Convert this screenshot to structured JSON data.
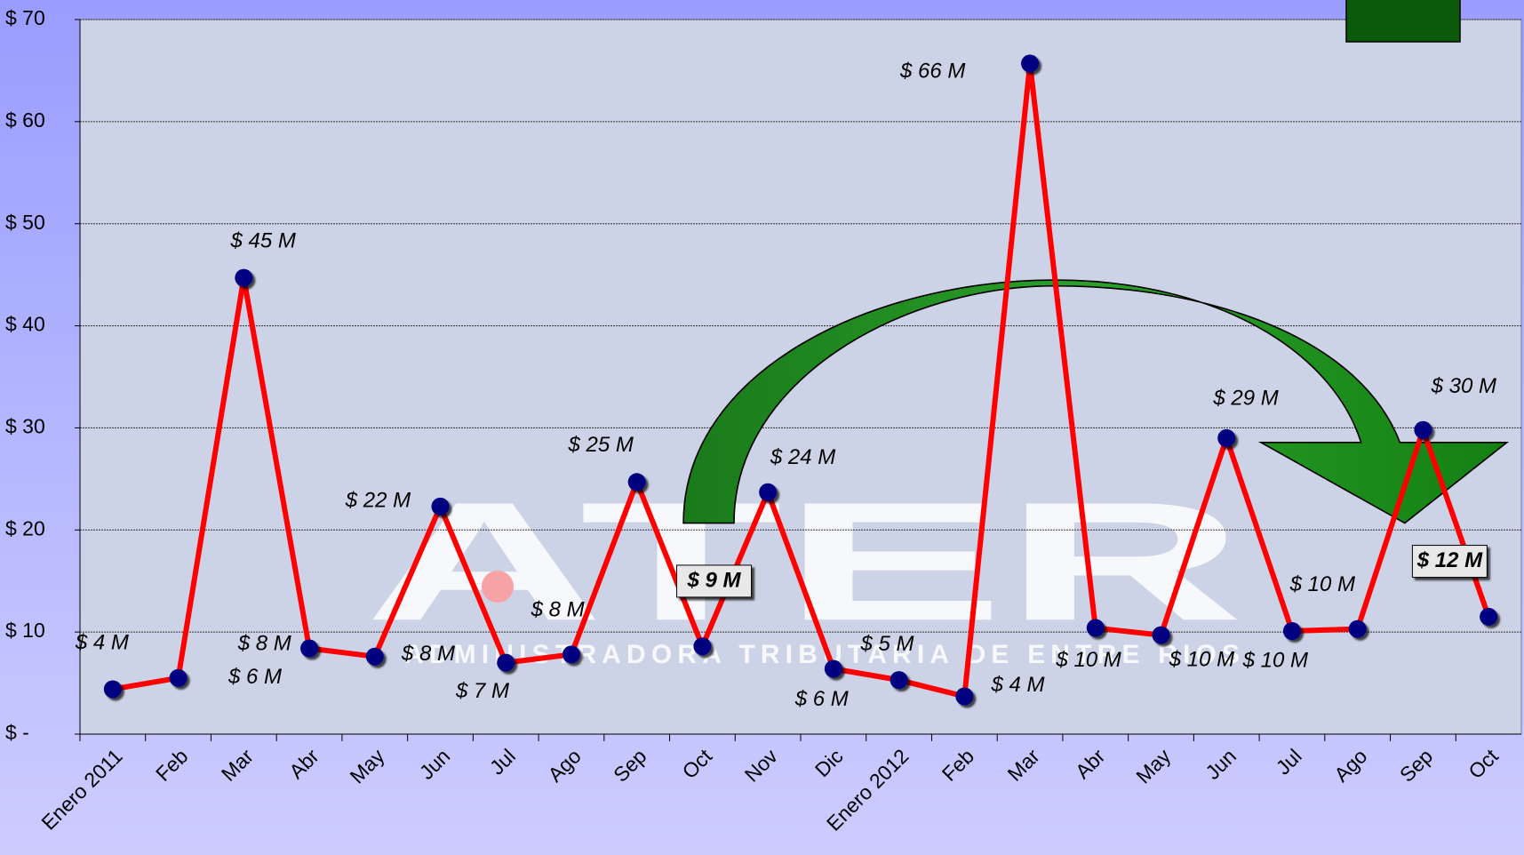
{
  "chart_data": {
    "type": "line",
    "watermark": "ATER",
    "watermark_subtitle": "ADMINISTRADORA TRIBUTARIA DE ENTRE RIOS",
    "categories": [
      "Enero 2011",
      "Feb",
      "Mar",
      "Abr",
      "May",
      "Jun",
      "Jul",
      "Ago",
      "Sep",
      "Oct",
      "Nov",
      "Dic",
      "Enero 2012",
      "Feb",
      "Mar",
      "Abr",
      "May",
      "Jun",
      "Jul",
      "Ago",
      "Sep",
      "Oct"
    ],
    "series": [
      {
        "color": "#ff0000",
        "values": [
          4.4,
          5.5,
          44.7,
          8.4,
          7.6,
          22.3,
          7.0,
          7.8,
          24.7,
          8.6,
          23.7,
          6.4,
          5.3,
          3.7,
          65.7,
          10.4,
          9.7,
          29.0,
          10.1,
          10.3,
          29.8,
          11.5
        ],
        "value_labels": [
          "$ 4 M",
          "$ 6 M",
          "$ 45 M",
          "$ 8 M",
          "$ 8 M",
          "$ 22 M",
          "$ 7 M",
          "$ 8 M",
          "$ 25 M",
          "$ 9 M",
          "$ 24 M",
          "$ 6 M",
          "$ 5 M",
          "$ 4 M",
          "$ 66 M",
          "$ 10 M",
          "$ 10 M",
          "$ 29 M",
          "$ 10 M",
          "$ 10 M",
          "$ 30 M",
          "$ 12 M"
        ]
      }
    ],
    "marker_color": "#000080",
    "ylim": [
      0,
      70
    ],
    "yticks": [
      {
        "value": 0,
        "label": "$ -"
      },
      {
        "value": 10,
        "label": "$ 10"
      },
      {
        "value": 20,
        "label": "$ 20"
      },
      {
        "value": 30,
        "label": "$ 30"
      },
      {
        "value": 40,
        "label": "$ 40"
      },
      {
        "value": 50,
        "label": "$ 50"
      },
      {
        "value": 60,
        "label": "$ 60"
      },
      {
        "value": 70,
        "label": "$ 70"
      }
    ],
    "grid": true
  }
}
